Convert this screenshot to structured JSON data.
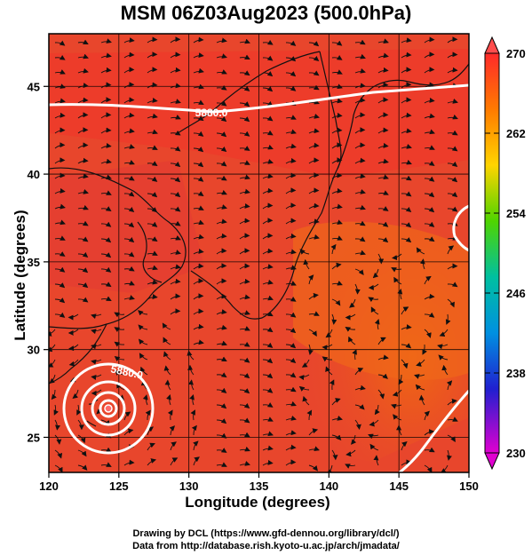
{
  "title": "MSM 06Z03Aug2023 (500.0hPa)",
  "axes": {
    "xlabel": "Longitude (degrees)",
    "ylabel": "Latitude  (degrees)",
    "x_ticks": [
      "120",
      "125",
      "130",
      "135",
      "140",
      "145",
      "150"
    ],
    "y_ticks": [
      "25",
      "30",
      "35",
      "40",
      "45"
    ]
  },
  "colorbar": {
    "labels": [
      "270",
      "262",
      "254",
      "246",
      "238",
      "230"
    ],
    "min": 230,
    "max": 270
  },
  "contours": {
    "label_north": "5880.0",
    "label_south": "5880.0"
  },
  "credits": {
    "line1": "Drawing by DCL (https://www.gfd-dennou.org/library/dcl/)",
    "line2": "Data from http://database.rish.kyoto-u.ac.jp/arch/jmadata/"
  },
  "map_extent": {
    "lon": [
      120,
      150
    ],
    "lat": [
      23,
      48
    ]
  }
}
